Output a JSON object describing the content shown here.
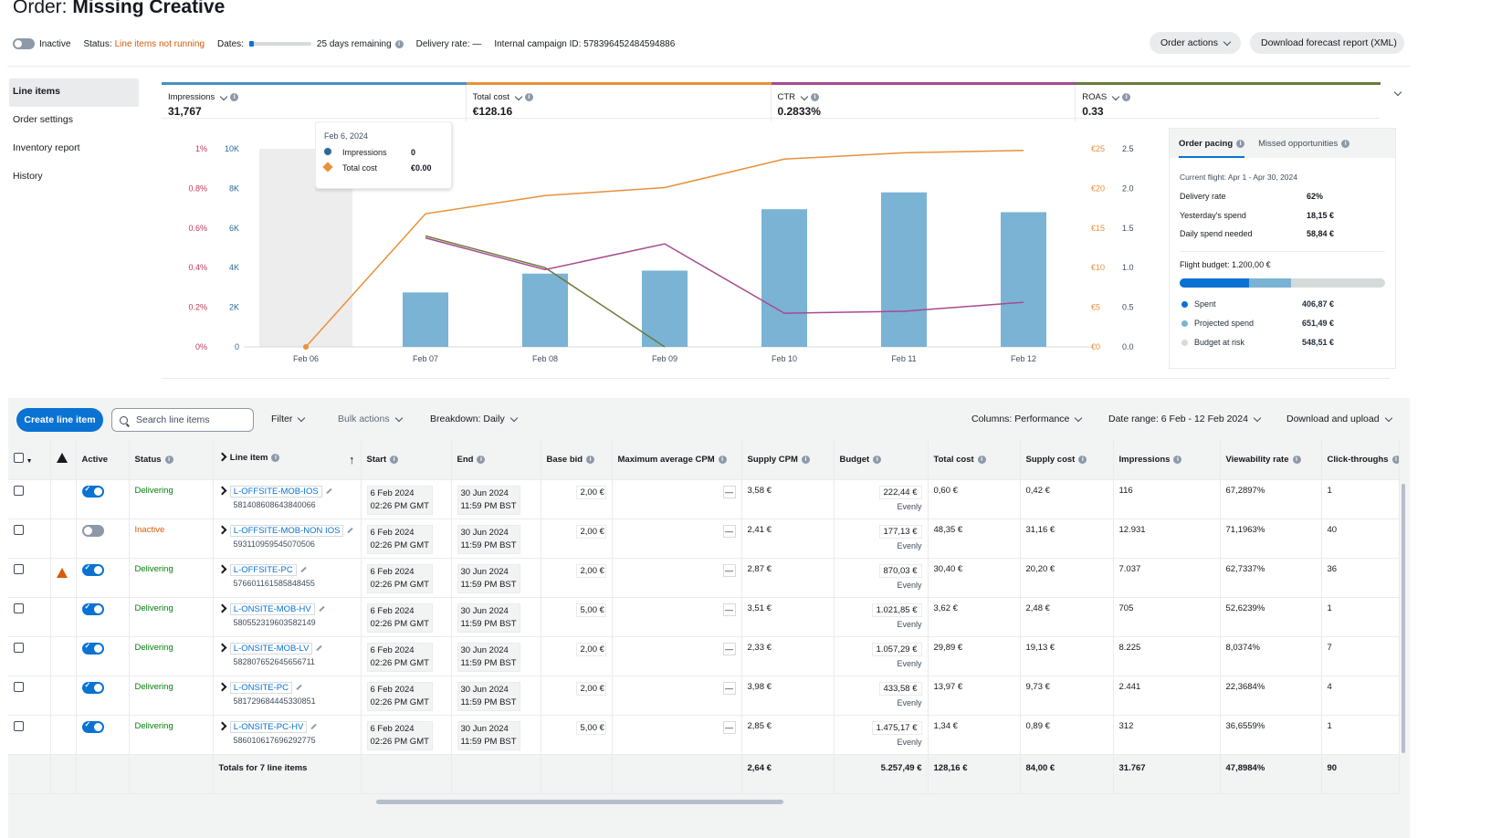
{
  "header": {
    "title_prefix": "Order:",
    "title_name": "Missing Creative",
    "toggle_label": "Inactive",
    "status_label": "Status:",
    "status_value": "Line items not running",
    "dates_label": "Dates:",
    "days_remaining": "25 days remaining",
    "delivery_rate": "Delivery rate: —",
    "campaign_id": "Internal campaign ID: 578396452484594886",
    "order_actions": "Order actions",
    "download_forecast": "Download forecast report (XML)"
  },
  "sidenav": [
    "Line items",
    "Order settings",
    "Inventory report",
    "History"
  ],
  "metrics": [
    {
      "label": "Impressions",
      "value": "31,767",
      "color": "#4a90c2"
    },
    {
      "label": "Total cost",
      "value": "€128.16",
      "color": "#e8913a"
    },
    {
      "label": "CTR",
      "value": "0.2833%",
      "color": "#a84a8f"
    },
    {
      "label": "ROAS",
      "value": "0.33",
      "color": "#6b7a3a"
    }
  ],
  "tooltip": {
    "date": "Feb 6, 2024",
    "impressions_label": "Impressions",
    "impressions_value": "0",
    "cost_label": "Total cost",
    "cost_value": "€0.00"
  },
  "chart_data": {
    "type": "bar",
    "categories": [
      "Feb 06",
      "Feb 07",
      "Feb 08",
      "Feb 09",
      "Feb 10",
      "Feb 11",
      "Feb 12"
    ],
    "series": [
      {
        "name": "Impressions",
        "kind": "bar",
        "axis": "left-10K",
        "color": "#7ab3d4",
        "values": [
          0,
          2750,
          3700,
          3850,
          6950,
          7800,
          6800
        ]
      },
      {
        "name": "Total cost",
        "kind": "line",
        "axis": "right-euro",
        "color": "#e8913a",
        "values": [
          0,
          16.8,
          19.1,
          20.1,
          23.7,
          24.5,
          24.8
        ]
      },
      {
        "name": "CTR",
        "kind": "line",
        "axis": "left-percent",
        "color": "#a84a8f",
        "values": [
          null,
          0.55,
          0.39,
          0.52,
          0.17,
          0.18,
          0.225
        ]
      },
      {
        "name": "ROAS",
        "kind": "line",
        "axis": "right-ratio",
        "color": "#6b7a3a",
        "values": [
          null,
          1.4,
          1.0,
          0.0,
          null,
          null,
          null
        ]
      }
    ],
    "y_percent_ticks": [
      "0%",
      "0.2%",
      "0.4%",
      "0.6%",
      "0.8%",
      "1%"
    ],
    "y_impr_ticks": [
      "0",
      "2K",
      "4K",
      "6K",
      "8K",
      "10K"
    ],
    "y_euro_ticks": [
      "€0",
      "€5",
      "€10",
      "€15",
      "€20",
      "€25"
    ],
    "y_ratio_ticks": [
      "0.0",
      "0.5",
      "1.0",
      "1.5",
      "2.0",
      "2.5"
    ],
    "ylim_impr": [
      0,
      10000
    ],
    "ylim_euro": [
      0,
      25
    ],
    "ylim_percent": [
      0,
      1
    ],
    "ylim_ratio": [
      0,
      2.5
    ],
    "highlight_category": "Feb 06"
  },
  "pacing": {
    "tab_active": "Order pacing",
    "tab_other": "Missed opportunities",
    "flight": "Current flight: Apr 1 - Apr 30, 2024",
    "rows": [
      {
        "k": "Delivery rate",
        "v": "62%"
      },
      {
        "k": "Yesterday's spend",
        "v": "18,15 €"
      },
      {
        "k": "Daily spend needed",
        "v": "58,84 €"
      }
    ],
    "flight_budget": "Flight budget: 1.200,00 €",
    "spent_fraction": 0.339,
    "projected_fraction": 0.543,
    "legend": [
      {
        "k": "Spent",
        "v": "406,87 €",
        "color": "#0972d3"
      },
      {
        "k": "Projected spend",
        "v": "651,49 €",
        "color": "#7ab3d4"
      },
      {
        "k": "Budget at risk",
        "v": "548,51 €",
        "color": "#d5dbdb"
      }
    ]
  },
  "toolbar": {
    "create": "Create line item",
    "search_placeholder": "Search line items",
    "filter": "Filter",
    "bulk": "Bulk actions",
    "breakdown": "Breakdown: Daily",
    "columns": "Columns: Performance",
    "daterange": "Date range: 6 Feb - 12 Feb 2024",
    "download": "Download and upload"
  },
  "table": {
    "headers": {
      "active": "Active",
      "status": "Status",
      "line_item": "Line item",
      "start": "Start",
      "end": "End",
      "base_bid": "Base bid",
      "max_cpm": "Maximum average CPM",
      "supply_cpm": "Supply CPM",
      "budget": "Budget",
      "total_cost": "Total cost",
      "supply_cost": "Supply cost",
      "impressions": "Impressions",
      "viewability": "Viewability rate",
      "clicks": "Click-throughs"
    },
    "rows": [
      {
        "active": true,
        "warn": false,
        "status": "Delivering",
        "name": "L-OFFSITE-MOB-IOS",
        "id": "581408608643840066",
        "start1": "6 Feb 2024",
        "start2": "02:26 PM GMT",
        "end1": "30 Jun 2024",
        "end2": "11:59 PM BST",
        "bid": "2,00 €",
        "max_cpm": "—",
        "supply_cpm": "3,58 €",
        "budget": "222,44 €",
        "pacing": "Evenly",
        "total_cost": "0,60 €",
        "supply_cost": "0,42 €",
        "impressions": "116",
        "viewability": "67,2897%",
        "clicks": "1"
      },
      {
        "active": false,
        "warn": false,
        "status": "Inactive",
        "name": "L-OFFSITE-MOB-NON IOS",
        "id": "593110959545070506",
        "start1": "6 Feb 2024",
        "start2": "02:26 PM GMT",
        "end1": "30 Jun 2024",
        "end2": "11:59 PM BST",
        "bid": "2,00 €",
        "max_cpm": "—",
        "supply_cpm": "2,41 €",
        "budget": "177,13 €",
        "pacing": "Evenly",
        "total_cost": "48,35 €",
        "supply_cost": "31,16 €",
        "impressions": "12.931",
        "viewability": "71,1963%",
        "clicks": "40"
      },
      {
        "active": true,
        "warn": true,
        "status": "Delivering",
        "name": "L-OFFSITE-PC",
        "id": "576601161585848455",
        "start1": "6 Feb 2024",
        "start2": "02:26 PM GMT",
        "end1": "30 Jun 2024",
        "end2": "11:59 PM BST",
        "bid": "2,00 €",
        "max_cpm": "—",
        "supply_cpm": "2,87 €",
        "budget": "870,03 €",
        "pacing": "Evenly",
        "total_cost": "30,40 €",
        "supply_cost": "20,20 €",
        "impressions": "7.037",
        "viewability": "62,7337%",
        "clicks": "36"
      },
      {
        "active": true,
        "warn": false,
        "status": "Delivering",
        "name": "L-ONSITE-MOB-HV",
        "id": "580552319603582149",
        "start1": "6 Feb 2024",
        "start2": "02:26 PM GMT",
        "end1": "30 Jun 2024",
        "end2": "11:59 PM BST",
        "bid": "5,00 €",
        "max_cpm": "—",
        "supply_cpm": "3,51 €",
        "budget": "1.021,85 €",
        "pacing": "Evenly",
        "total_cost": "3,62 €",
        "supply_cost": "2,48 €",
        "impressions": "705",
        "viewability": "52,6239%",
        "clicks": "1"
      },
      {
        "active": true,
        "warn": false,
        "status": "Delivering",
        "name": "L-ONSITE-MOB-LV",
        "id": "582807652645656711",
        "start1": "6 Feb 2024",
        "start2": "02:26 PM GMT",
        "end1": "30 Jun 2024",
        "end2": "11:59 PM BST",
        "bid": "2,00 €",
        "max_cpm": "—",
        "supply_cpm": "2,33 €",
        "budget": "1.057,29 €",
        "pacing": "Evenly",
        "total_cost": "29,89 €",
        "supply_cost": "19,13 €",
        "impressions": "8.225",
        "viewability": "8,0374%",
        "clicks": "7"
      },
      {
        "active": true,
        "warn": false,
        "status": "Delivering",
        "name": "L-ONSITE-PC",
        "id": "581729684445330851",
        "start1": "6 Feb 2024",
        "start2": "02:26 PM GMT",
        "end1": "30 Jun 2024",
        "end2": "11:59 PM BST",
        "bid": "2,00 €",
        "max_cpm": "—",
        "supply_cpm": "3,98 €",
        "budget": "433,58 €",
        "pacing": "Evenly",
        "total_cost": "13,97 €",
        "supply_cost": "9,73 €",
        "impressions": "2.441",
        "viewability": "22,3684%",
        "clicks": "4"
      },
      {
        "active": true,
        "warn": false,
        "status": "Delivering",
        "name": "L-ONSITE-PC-HV",
        "id": "586010617696292775",
        "start1": "6 Feb 2024",
        "start2": "02:26 PM GMT",
        "end1": "30 Jun 2024",
        "end2": "11:59 PM BST",
        "bid": "5,00 €",
        "max_cpm": "—",
        "supply_cpm": "2,85 €",
        "budget": "1.475,17 €",
        "pacing": "Evenly",
        "total_cost": "1,34 €",
        "supply_cost": "0,89 €",
        "impressions": "312",
        "viewability": "36,6559%",
        "clicks": "1"
      }
    ],
    "totals": {
      "label": "Totals for 7 line items",
      "supply_cpm": "2,64 €",
      "budget": "5.257,49 €",
      "total_cost": "128,16 €",
      "supply_cost": "84,00 €",
      "impressions": "31.767",
      "viewability": "47,8984%",
      "clicks": "90"
    }
  }
}
